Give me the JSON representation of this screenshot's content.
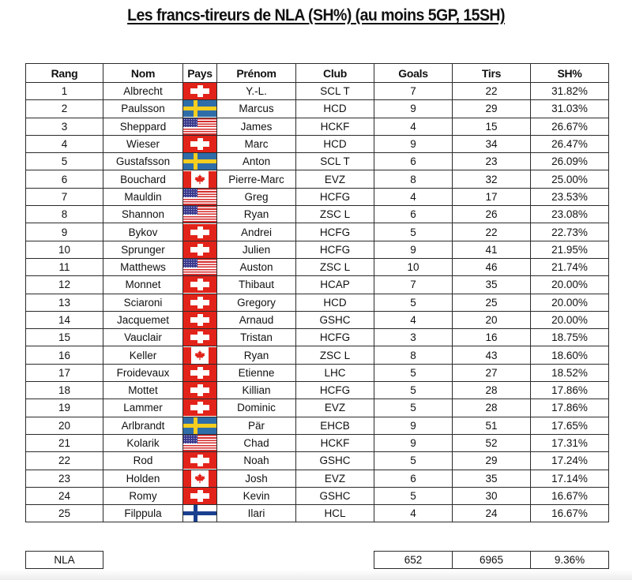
{
  "title": "Les francs-tireurs de NLA (SH%) (au moins 5GP, 15SH)",
  "table": {
    "headers": [
      "Rang",
      "Nom",
      "Pays",
      "Prénom",
      "Club",
      "Goals",
      "Tirs",
      "SH%"
    ],
    "rows": [
      {
        "rang": "1",
        "nom": "Albrecht",
        "pays": "switzerland-flag-icon",
        "prenom": "Y.-L.",
        "club": "SCL T",
        "goals": "7",
        "tirs": "22",
        "sh": "31.82%"
      },
      {
        "rang": "2",
        "nom": "Paulsson",
        "pays": "sweden-flag-icon",
        "prenom": "Marcus",
        "club": "HCD",
        "goals": "9",
        "tirs": "29",
        "sh": "31.03%"
      },
      {
        "rang": "3",
        "nom": "Sheppard",
        "pays": "usa-flag-icon",
        "prenom": "James",
        "club": "HCKF",
        "goals": "4",
        "tirs": "15",
        "sh": "26.67%"
      },
      {
        "rang": "4",
        "nom": "Wieser",
        "pays": "switzerland-flag-icon",
        "prenom": "Marc",
        "club": "HCD",
        "goals": "9",
        "tirs": "34",
        "sh": "26.47%"
      },
      {
        "rang": "5",
        "nom": "Gustafsson",
        "pays": "sweden-flag-icon",
        "prenom": "Anton",
        "club": "SCL T",
        "goals": "6",
        "tirs": "23",
        "sh": "26.09%"
      },
      {
        "rang": "6",
        "nom": "Bouchard",
        "pays": "canada-flag-icon",
        "prenom": "Pierre-Marc",
        "club": "EVZ",
        "goals": "8",
        "tirs": "32",
        "sh": "25.00%"
      },
      {
        "rang": "7",
        "nom": "Mauldin",
        "pays": "usa-flag-icon",
        "prenom": "Greg",
        "club": "HCFG",
        "goals": "4",
        "tirs": "17",
        "sh": "23.53%"
      },
      {
        "rang": "8",
        "nom": "Shannon",
        "pays": "usa-flag-icon",
        "prenom": "Ryan",
        "club": "ZSC L",
        "goals": "6",
        "tirs": "26",
        "sh": "23.08%"
      },
      {
        "rang": "9",
        "nom": "Bykov",
        "pays": "switzerland-flag-icon",
        "prenom": "Andrei",
        "club": "HCFG",
        "goals": "5",
        "tirs": "22",
        "sh": "22.73%"
      },
      {
        "rang": "10",
        "nom": "Sprunger",
        "pays": "switzerland-flag-icon",
        "prenom": "Julien",
        "club": "HCFG",
        "goals": "9",
        "tirs": "41",
        "sh": "21.95%"
      },
      {
        "rang": "11",
        "nom": "Matthews",
        "pays": "usa-flag-icon",
        "prenom": "Auston",
        "club": "ZSC L",
        "goals": "10",
        "tirs": "46",
        "sh": "21.74%"
      },
      {
        "rang": "12",
        "nom": "Monnet",
        "pays": "switzerland-flag-icon",
        "prenom": "Thibaut",
        "club": "HCAP",
        "goals": "7",
        "tirs": "35",
        "sh": "20.00%"
      },
      {
        "rang": "13",
        "nom": "Sciaroni",
        "pays": "switzerland-flag-icon",
        "prenom": "Gregory",
        "club": "HCD",
        "goals": "5",
        "tirs": "25",
        "sh": "20.00%"
      },
      {
        "rang": "14",
        "nom": "Jacquemet",
        "pays": "switzerland-flag-icon",
        "prenom": "Arnaud",
        "club": "GSHC",
        "goals": "4",
        "tirs": "20",
        "sh": "20.00%"
      },
      {
        "rang": "15",
        "nom": "Vauclair",
        "pays": "switzerland-flag-icon",
        "prenom": "Tristan",
        "club": "HCFG",
        "goals": "3",
        "tirs": "16",
        "sh": "18.75%"
      },
      {
        "rang": "16",
        "nom": "Keller",
        "pays": "canada-flag-icon",
        "prenom": "Ryan",
        "club": "ZSC L",
        "goals": "8",
        "tirs": "43",
        "sh": "18.60%"
      },
      {
        "rang": "17",
        "nom": "Froidevaux",
        "pays": "switzerland-flag-icon",
        "prenom": "Etienne",
        "club": "LHC",
        "goals": "5",
        "tirs": "27",
        "sh": "18.52%"
      },
      {
        "rang": "18",
        "nom": "Mottet",
        "pays": "switzerland-flag-icon",
        "prenom": "Killian",
        "club": "HCFG",
        "goals": "5",
        "tirs": "28",
        "sh": "17.86%"
      },
      {
        "rang": "19",
        "nom": "Lammer",
        "pays": "switzerland-flag-icon",
        "prenom": "Dominic",
        "club": "EVZ",
        "goals": "5",
        "tirs": "28",
        "sh": "17.86%"
      },
      {
        "rang": "20",
        "nom": "Arlbrandt",
        "pays": "sweden-flag-icon",
        "prenom": "Pär",
        "club": "EHCB",
        "goals": "9",
        "tirs": "51",
        "sh": "17.65%"
      },
      {
        "rang": "21",
        "nom": "Kolarik",
        "pays": "usa-flag-icon",
        "prenom": "Chad",
        "club": "HCKF",
        "goals": "9",
        "tirs": "52",
        "sh": "17.31%"
      },
      {
        "rang": "22",
        "nom": "Rod",
        "pays": "switzerland-flag-icon",
        "prenom": "Noah",
        "club": "GSHC",
        "goals": "5",
        "tirs": "29",
        "sh": "17.24%"
      },
      {
        "rang": "23",
        "nom": "Holden",
        "pays": "canada-flag-icon",
        "prenom": "Josh",
        "club": "EVZ",
        "goals": "6",
        "tirs": "35",
        "sh": "17.14%"
      },
      {
        "rang": "24",
        "nom": "Romy",
        "pays": "switzerland-flag-icon",
        "prenom": "Kevin",
        "club": "GSHC",
        "goals": "5",
        "tirs": "30",
        "sh": "16.67%"
      },
      {
        "rang": "25",
        "nom": "Filppula",
        "pays": "finland-flag-icon",
        "prenom": "Ilari",
        "club": "HCL",
        "goals": "4",
        "tirs": "24",
        "sh": "16.67%"
      }
    ]
  },
  "footer": {
    "league": "NLA",
    "goals": "652",
    "tirs": "6965",
    "sh": "9.36%"
  },
  "colors": {
    "swiss_red": "#e2231a",
    "sweden_blue": "#2f6da8",
    "sweden_yellow": "#f4cd1e",
    "usa_blue": "#3c3b8e",
    "usa_red": "#d62b2b",
    "finland_blue": "#1b3f8f",
    "border": "#2a2a2a"
  }
}
